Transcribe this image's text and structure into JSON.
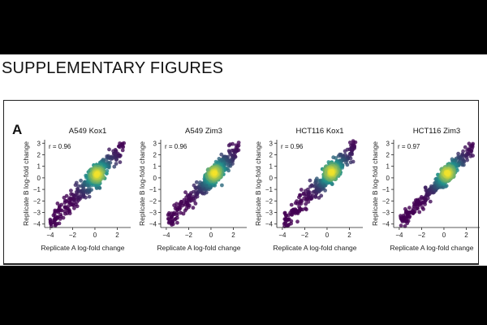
{
  "heading": "SUPPLEMENTARY FIGURES",
  "panel_label": "A",
  "colors": {
    "low_density": "#440154",
    "mid_density": "#21918c",
    "high_density": "#fde725"
  },
  "chart_data": [
    {
      "type": "scatter",
      "title": "A549 Kox1",
      "annotation": "r = 0.96",
      "r": 0.96,
      "xlabel": "Replicate A log-fold change",
      "ylabel": "Replicate B log-fold change",
      "xlim": [
        -4.5,
        3.2
      ],
      "ylim": [
        -4.3,
        3.3
      ],
      "xticks": [
        -4,
        -2,
        0,
        2
      ],
      "yticks": [
        -4,
        -3,
        -2,
        -1,
        0,
        1,
        2,
        3
      ],
      "density_center": [
        0.2,
        0.3
      ],
      "x_extent": [
        -4,
        2.6
      ],
      "point_count": 420
    },
    {
      "type": "scatter",
      "title": "A549 Zim3",
      "annotation": "r = 0.96",
      "r": 0.96,
      "xlabel": "Replicate A log-fold change",
      "ylabel": "Replicate B log-fold change",
      "xlim": [
        -4.5,
        3.2
      ],
      "ylim": [
        -4.3,
        3.3
      ],
      "xticks": [
        -4,
        -2,
        0,
        2
      ],
      "yticks": [
        -4,
        -3,
        -2,
        -1,
        0,
        1,
        2,
        3
      ],
      "density_center": [
        0.3,
        0.4
      ],
      "x_extent": [
        -3.9,
        2.5
      ],
      "point_count": 420
    },
    {
      "type": "scatter",
      "title": "HCT116 Kox1",
      "annotation": "r = 0.96",
      "r": 0.96,
      "xlabel": "Replicate A log-fold change",
      "ylabel": "Replicate B log-fold change",
      "xlim": [
        -4.5,
        3.2
      ],
      "ylim": [
        -4.3,
        3.3
      ],
      "xticks": [
        -4,
        -2,
        0,
        2
      ],
      "yticks": [
        -4,
        -3,
        -2,
        -1,
        0,
        1,
        2,
        3
      ],
      "density_center": [
        0.4,
        0.5
      ],
      "x_extent": [
        -3.9,
        2.6
      ],
      "point_count": 420
    },
    {
      "type": "scatter",
      "title": "HCT116 Zim3",
      "annotation": "r = 0.97",
      "r": 0.97,
      "xlabel": "Replicate A log-fold change",
      "ylabel": "Replicate B log-fold change",
      "xlim": [
        -4.5,
        3.2
      ],
      "ylim": [
        -4.3,
        3.3
      ],
      "xticks": [
        -4,
        -2,
        0,
        2
      ],
      "yticks": [
        -4,
        -3,
        -2,
        -1,
        0,
        1,
        2,
        3
      ],
      "density_center": [
        0.3,
        0.4
      ],
      "x_extent": [
        -3.9,
        2.6
      ],
      "point_count": 420
    }
  ]
}
